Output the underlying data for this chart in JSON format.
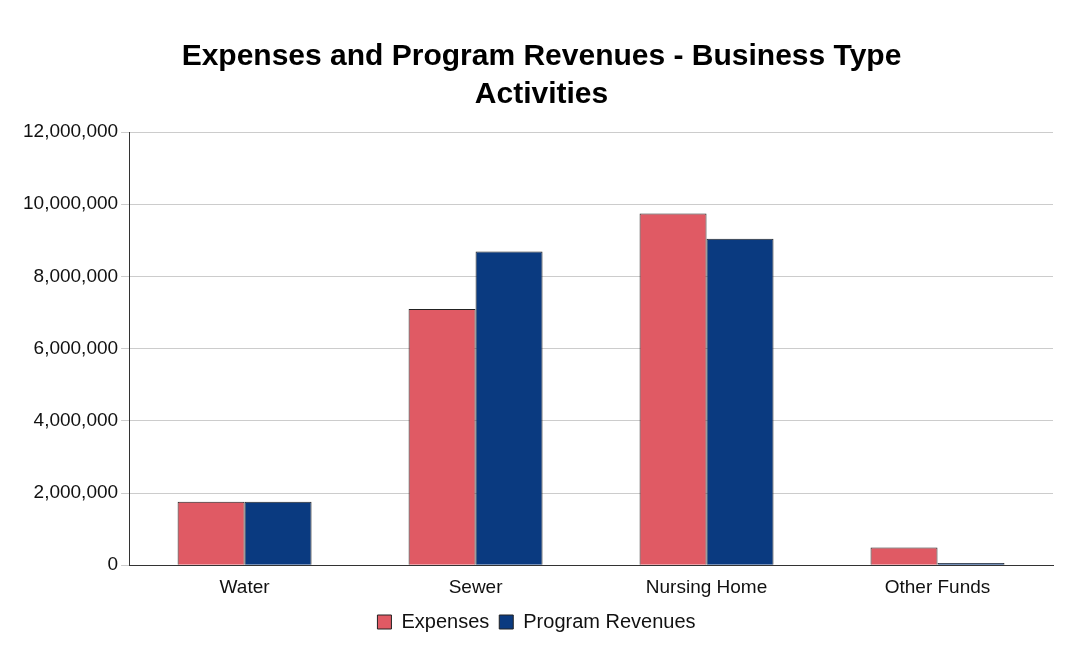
{
  "chart_data": {
    "type": "bar",
    "title": "Expenses and Program Revenues  - Business Type Activities",
    "categories": [
      "Water",
      "Sewer",
      "Nursing Home",
      "Other Funds"
    ],
    "series": [
      {
        "name": "Expenses",
        "color": "#e05a64",
        "values": [
          1760000,
          7100000,
          9740000,
          490000
        ]
      },
      {
        "name": "Program Revenues",
        "color": "#0a3a80",
        "values": [
          1760000,
          8690000,
          9040000,
          60000
        ]
      }
    ],
    "ylim": [
      0,
      12000000
    ],
    "yticks": [
      {
        "value": 0,
        "label": "0"
      },
      {
        "value": 2000000,
        "label": "2,000,000"
      },
      {
        "value": 4000000,
        "label": "4,000,000"
      },
      {
        "value": 6000000,
        "label": "6,000,000"
      },
      {
        "value": 8000000,
        "label": "8,000,000"
      },
      {
        "value": 10000000,
        "label": "10,000,000"
      },
      {
        "value": 12000000,
        "label": "12,000,000"
      }
    ],
    "grid": "y",
    "legend": "bottom"
  }
}
